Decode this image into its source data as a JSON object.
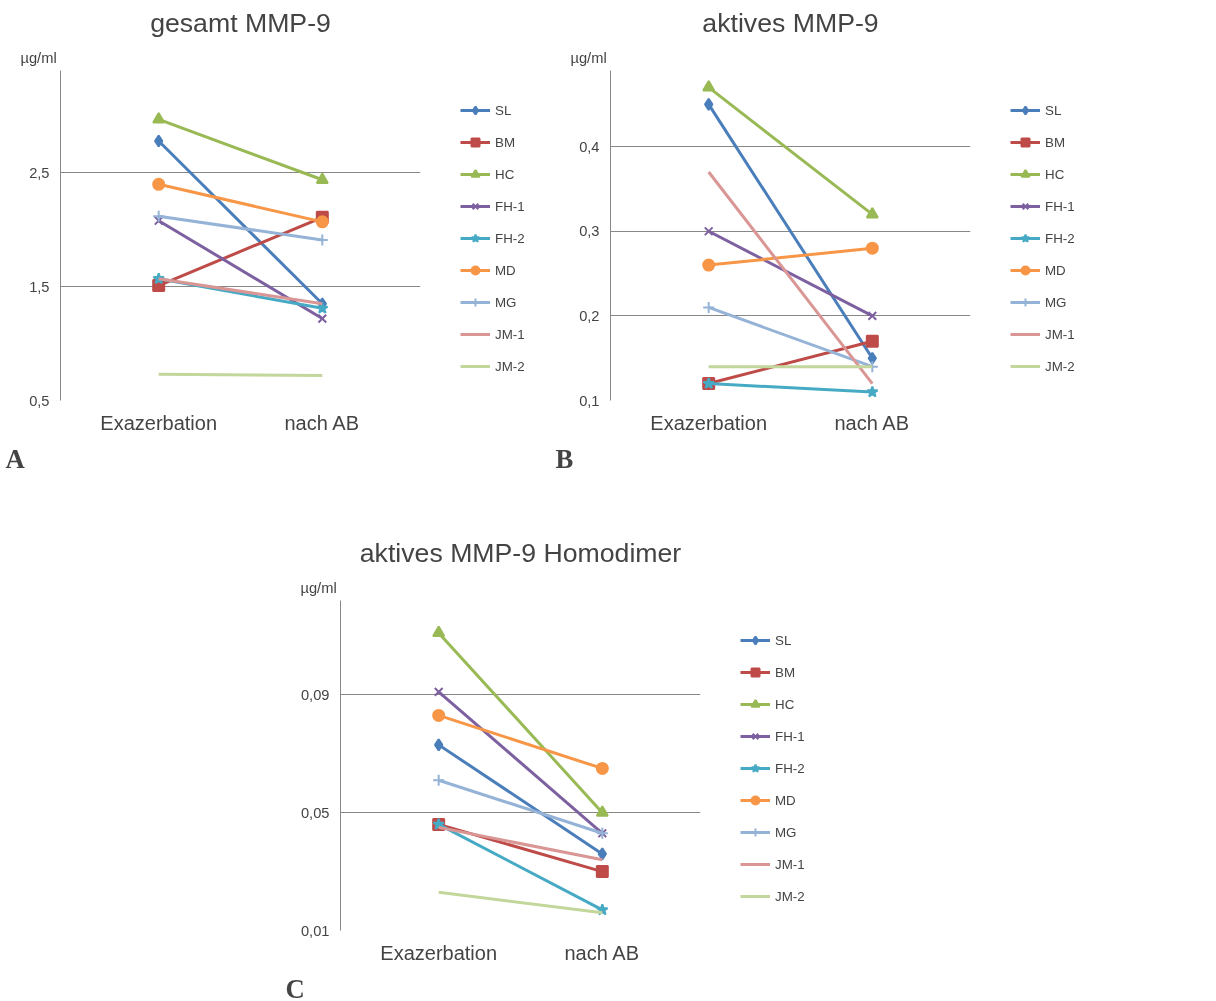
{
  "chart_data": [
    {
      "type": "line",
      "title": "gesamt MMP-9",
      "ylabel": "µg/ml",
      "categories": [
        "Exazerbation",
        "nach AB"
      ],
      "ylim": [
        0.5,
        3.4
      ],
      "yticks": [
        {
          "value": 0.5,
          "label": "0,5"
        },
        {
          "value": 1.5,
          "label": "1,5"
        },
        {
          "value": 2.5,
          "label": "2,5"
        }
      ],
      "grid": "y",
      "legend": "right",
      "annotations": [
        "A"
      ],
      "series": [
        {
          "name": "SL",
          "color": "#4a7ebb",
          "marker": "diamond",
          "values": [
            2.78,
            1.35
          ]
        },
        {
          "name": "BM",
          "color": "#be4b48",
          "marker": "square",
          "values": [
            1.51,
            2.11
          ]
        },
        {
          "name": "HC",
          "color": "#98b954",
          "marker": "triangle",
          "values": [
            2.97,
            2.44
          ]
        },
        {
          "name": "FH-1",
          "color": "#7d60a0",
          "marker": "x",
          "values": [
            2.08,
            1.22
          ]
        },
        {
          "name": "FH-2",
          "color": "#46aac5",
          "marker": "star",
          "values": [
            1.57,
            1.31
          ]
        },
        {
          "name": "MD",
          "color": "#f79646",
          "marker": "circle",
          "values": [
            2.4,
            2.07
          ]
        },
        {
          "name": "MG",
          "color": "#95b3d7",
          "marker": "cross",
          "values": [
            2.12,
            1.91
          ]
        },
        {
          "name": "JM-1",
          "color": "#d99694",
          "marker": "none",
          "values": [
            1.57,
            1.35
          ]
        },
        {
          "name": "JM-2",
          "color": "#c3d69b",
          "marker": "none",
          "values": [
            0.73,
            0.72
          ]
        }
      ]
    },
    {
      "type": "line",
      "title": "aktives MMP-9",
      "ylabel": "µg/ml",
      "categories": [
        "Exazerbation",
        "nach AB"
      ],
      "ylim": [
        0.1,
        0.49
      ],
      "yticks": [
        {
          "value": 0.1,
          "label": "0,1"
        },
        {
          "value": 0.2,
          "label": "0,2"
        },
        {
          "value": 0.3,
          "label": "0,3"
        },
        {
          "value": 0.4,
          "label": "0,4"
        }
      ],
      "grid": "y",
      "legend": "right",
      "annotations": [
        "B"
      ],
      "series": [
        {
          "name": "SL",
          "color": "#4a7ebb",
          "marker": "diamond",
          "values": [
            0.45,
            0.15
          ]
        },
        {
          "name": "BM",
          "color": "#be4b48",
          "marker": "square",
          "values": [
            0.12,
            0.17
          ]
        },
        {
          "name": "HC",
          "color": "#98b954",
          "marker": "triangle",
          "values": [
            0.47,
            0.32
          ]
        },
        {
          "name": "FH-1",
          "color": "#7d60a0",
          "marker": "x",
          "values": [
            0.3,
            0.2
          ]
        },
        {
          "name": "FH-2",
          "color": "#46aac5",
          "marker": "star",
          "values": [
            0.12,
            0.11
          ]
        },
        {
          "name": "MD",
          "color": "#f79646",
          "marker": "circle",
          "values": [
            0.26,
            0.28
          ]
        },
        {
          "name": "MG",
          "color": "#95b3d7",
          "marker": "cross",
          "values": [
            0.21,
            0.14
          ]
        },
        {
          "name": "JM-1",
          "color": "#d99694",
          "marker": "none",
          "values": [
            0.37,
            0.12
          ]
        },
        {
          "name": "JM-2",
          "color": "#c3d69b",
          "marker": "none",
          "values": [
            0.14,
            0.14
          ]
        }
      ]
    },
    {
      "type": "line",
      "title": "aktives MMP-9 Homodimer",
      "ylabel": "µg/ml",
      "categories": [
        "Exazerbation",
        "nach AB"
      ],
      "ylim": [
        0.01,
        0.122
      ],
      "yticks": [
        {
          "value": 0.01,
          "label": "0,01"
        },
        {
          "value": 0.05,
          "label": "0,05"
        },
        {
          "value": 0.09,
          "label": "0,09"
        }
      ],
      "grid": "y",
      "legend": "right",
      "annotations": [
        "C"
      ],
      "series": [
        {
          "name": "SL",
          "color": "#4a7ebb",
          "marker": "diamond",
          "values": [
            0.073,
            0.036
          ]
        },
        {
          "name": "BM",
          "color": "#be4b48",
          "marker": "square",
          "values": [
            0.046,
            0.03
          ]
        },
        {
          "name": "HC",
          "color": "#98b954",
          "marker": "triangle",
          "values": [
            0.111,
            0.05
          ]
        },
        {
          "name": "FH-1",
          "color": "#7d60a0",
          "marker": "x",
          "values": [
            0.091,
            0.043
          ]
        },
        {
          "name": "FH-2",
          "color": "#46aac5",
          "marker": "star",
          "values": [
            0.046,
            0.017
          ]
        },
        {
          "name": "MD",
          "color": "#f79646",
          "marker": "circle",
          "values": [
            0.083,
            0.065
          ]
        },
        {
          "name": "MG",
          "color": "#95b3d7",
          "marker": "cross",
          "values": [
            0.061,
            0.043
          ]
        },
        {
          "name": "JM-1",
          "color": "#d99694",
          "marker": "none",
          "values": [
            0.045,
            0.034
          ]
        },
        {
          "name": "JM-2",
          "color": "#c3d69b",
          "marker": "none",
          "values": [
            0.023,
            0.016
          ]
        }
      ]
    }
  ]
}
